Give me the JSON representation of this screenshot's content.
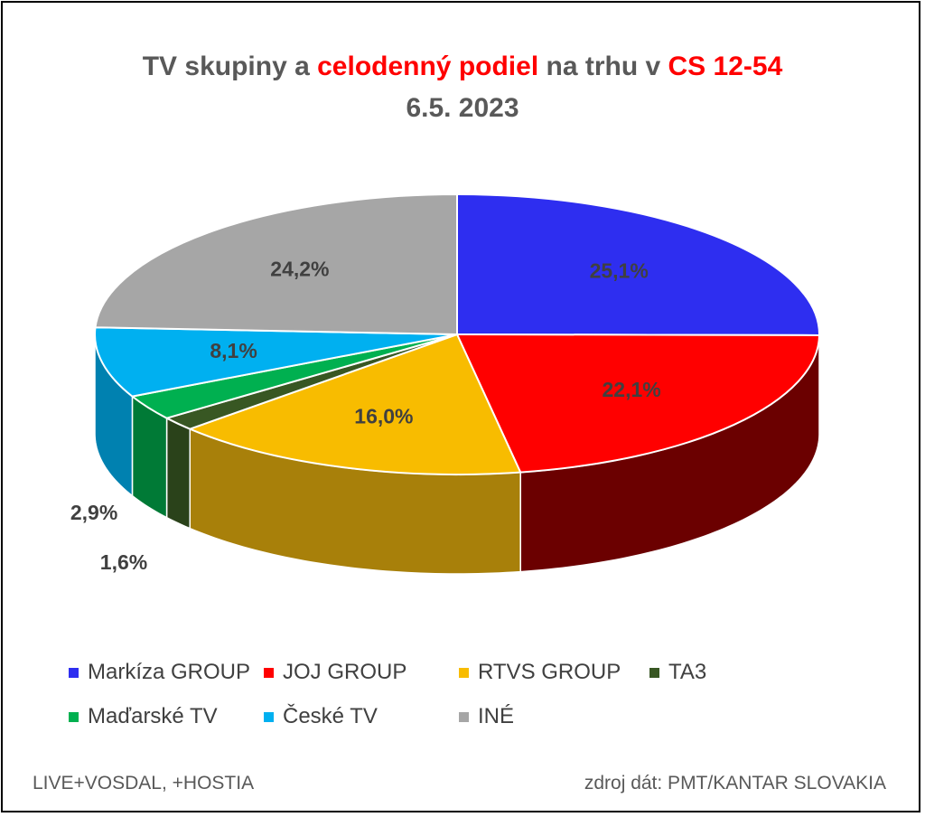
{
  "title": {
    "part1": "TV skupiny a ",
    "part2": "celodenný podiel",
    "part3": " na trhu v ",
    "part4": "CS 12-54",
    "line2": "6.5. 2023"
  },
  "chart_data": {
    "type": "pie",
    "style": "3d",
    "title": "TV skupiny a celodenný podiel na trhu v CS 12-54 6.5. 2023",
    "slices": [
      {
        "label": "Markíza GROUP",
        "value": 25.1,
        "value_label": "25,1%",
        "color": "#2e2ef0",
        "side_color": "#1c1c96"
      },
      {
        "label": "JOJ GROUP",
        "value": 22.1,
        "value_label": "22,1%",
        "color": "#ff0000",
        "side_color": "#6b0000"
      },
      {
        "label": "RTVS GROUP",
        "value": 16.0,
        "value_label": "16,0%",
        "color": "#f8bc00",
        "side_color": "#a8800a"
      },
      {
        "label": "TA3",
        "value": 1.6,
        "value_label": "1,6%",
        "color": "#385723",
        "side_color": "#2a421a"
      },
      {
        "label": "Maďarské  TV",
        "value": 2.9,
        "value_label": "2,9%",
        "color": "#00b050",
        "side_color": "#007a36"
      },
      {
        "label": "České  TV",
        "value": 8.1,
        "value_label": "8,1%",
        "color": "#00b0f0",
        "side_color": "#0081b0"
      },
      {
        "label": "INÉ",
        "value": 24.2,
        "value_label": "24,2%",
        "color": "#a6a6a6",
        "side_color": "#767676"
      }
    ],
    "legend_position": "bottom"
  },
  "legend": [
    {
      "label": "Markíza GROUP",
      "color": "#2e2ef0"
    },
    {
      "label": "JOJ GROUP",
      "color": "#ff0000"
    },
    {
      "label": "RTVS GROUP",
      "color": "#f8bc00"
    },
    {
      "label": "TA3",
      "color": "#385723"
    },
    {
      "label": "Maďarské  TV",
      "color": "#00b050"
    },
    {
      "label": "České  TV",
      "color": "#00b0f0"
    },
    {
      "label": "INÉ",
      "color": "#a6a6a6"
    }
  ],
  "footer": {
    "left": "LIVE+VOSDAL,  +HOSTIA",
    "right": "zdroj dát: PMT/KANTAR SLOVAKIA"
  }
}
